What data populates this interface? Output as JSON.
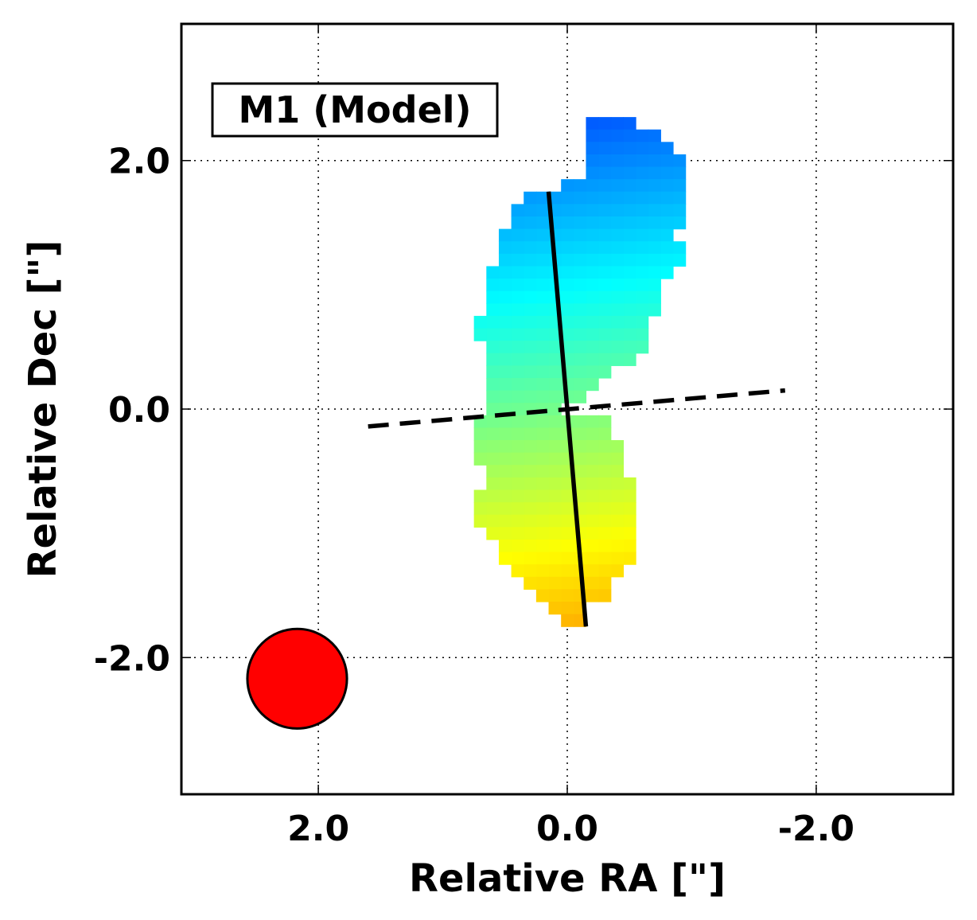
{
  "chart_data": {
    "type": "heatmap",
    "title": "M1 (Model)",
    "xlabel": "Relative RA [\"]",
    "ylabel": "Relative Dec [\"]",
    "xlim": [
      3.1,
      -3.1
    ],
    "ylim": [
      -3.1,
      3.1
    ],
    "x_ticks": [
      2.0,
      0.0,
      -2.0
    ],
    "y_ticks": [
      2.0,
      0.0,
      -2.0
    ],
    "x_tick_labels": [
      "2.0",
      "0.0",
      "-2.0"
    ],
    "y_tick_labels": [
      "2.0",
      "0.0",
      "-2.0"
    ],
    "grid": "dotted",
    "colormap": "jet",
    "velocity_map": {
      "pixel_size": 0.1,
      "rows": [
        {
          "y": 2.3,
          "x_min": -0.5,
          "x_max": -0.2
        },
        {
          "y": 2.2,
          "x_min": -0.7,
          "x_max": -0.2
        },
        {
          "y": 2.1,
          "x_min": -0.8,
          "x_max": -0.2
        },
        {
          "y": 2.0,
          "x_min": -0.9,
          "x_max": -0.2
        },
        {
          "y": 1.9,
          "x_min": -0.9,
          "x_max": -0.2
        },
        {
          "y": 1.8,
          "x_min": -0.9,
          "x_max": 0.0
        },
        {
          "y": 1.7,
          "x_min": -0.9,
          "x_max": 0.3
        },
        {
          "y": 1.6,
          "x_min": -0.9,
          "x_max": 0.4
        },
        {
          "y": 1.5,
          "x_min": -0.9,
          "x_max": 0.4
        },
        {
          "y": 1.4,
          "x_min": -0.8,
          "x_max": 0.5
        },
        {
          "y": 1.3,
          "x_min": -0.9,
          "x_max": 0.5
        },
        {
          "y": 1.2,
          "x_min": -0.9,
          "x_max": 0.5
        },
        {
          "y": 1.1,
          "x_min": -0.8,
          "x_max": 0.6
        },
        {
          "y": 1.0,
          "x_min": -0.7,
          "x_max": 0.6
        },
        {
          "y": 0.9,
          "x_min": -0.7,
          "x_max": 0.6
        },
        {
          "y": 0.8,
          "x_min": -0.7,
          "x_max": 0.6
        },
        {
          "y": 0.7,
          "x_min": -0.6,
          "x_max": 0.7
        },
        {
          "y": 0.6,
          "x_min": -0.6,
          "x_max": 0.7
        },
        {
          "y": 0.5,
          "x_min": -0.6,
          "x_max": 0.6
        },
        {
          "y": 0.4,
          "x_min": -0.5,
          "x_max": 0.6
        },
        {
          "y": 0.3,
          "x_min": -0.3,
          "x_max": 0.6
        },
        {
          "y": 0.2,
          "x_min": -0.2,
          "x_max": 0.6
        },
        {
          "y": 0.1,
          "x_min": -0.1,
          "x_max": 0.6
        },
        {
          "y": 0.0,
          "x_min": 0.1,
          "x_max": 0.6
        },
        {
          "y": -0.1,
          "x_min": -0.3,
          "x_max": 0.7
        },
        {
          "y": -0.2,
          "x_min": -0.3,
          "x_max": 0.7
        },
        {
          "y": -0.3,
          "x_min": -0.4,
          "x_max": 0.7
        },
        {
          "y": -0.4,
          "x_min": -0.4,
          "x_max": 0.7
        },
        {
          "y": -0.5,
          "x_min": -0.4,
          "x_max": 0.6
        },
        {
          "y": -0.6,
          "x_min": -0.5,
          "x_max": 0.6
        },
        {
          "y": -0.7,
          "x_min": -0.5,
          "x_max": 0.7
        },
        {
          "y": -0.8,
          "x_min": -0.5,
          "x_max": 0.7
        },
        {
          "y": -0.9,
          "x_min": -0.5,
          "x_max": 0.7
        },
        {
          "y": -1.0,
          "x_min": -0.5,
          "x_max": 0.6
        },
        {
          "y": -1.1,
          "x_min": -0.5,
          "x_max": 0.5
        },
        {
          "y": -1.2,
          "x_min": -0.5,
          "x_max": 0.5
        },
        {
          "y": -1.3,
          "x_min": -0.4,
          "x_max": 0.4
        },
        {
          "y": -1.4,
          "x_min": -0.3,
          "x_max": 0.3
        },
        {
          "y": -1.5,
          "x_min": -0.3,
          "x_max": 0.2
        },
        {
          "y": -1.6,
          "x_min": -0.1,
          "x_max": 0.1
        },
        {
          "y": -1.7,
          "x_min": -0.1,
          "x_max": 0.0
        }
      ]
    },
    "major_axis_line": {
      "x": [
        0.15,
        -0.15
      ],
      "y": [
        1.75,
        -1.75
      ],
      "style": "solid"
    },
    "minor_axis_line": {
      "x": [
        1.6,
        -1.75
      ],
      "y": [
        -0.14,
        0.15
      ],
      "style": "dashed"
    },
    "beam": {
      "x": 2.17,
      "y": -2.17,
      "radius": 0.4,
      "color": "#ff0000"
    }
  }
}
